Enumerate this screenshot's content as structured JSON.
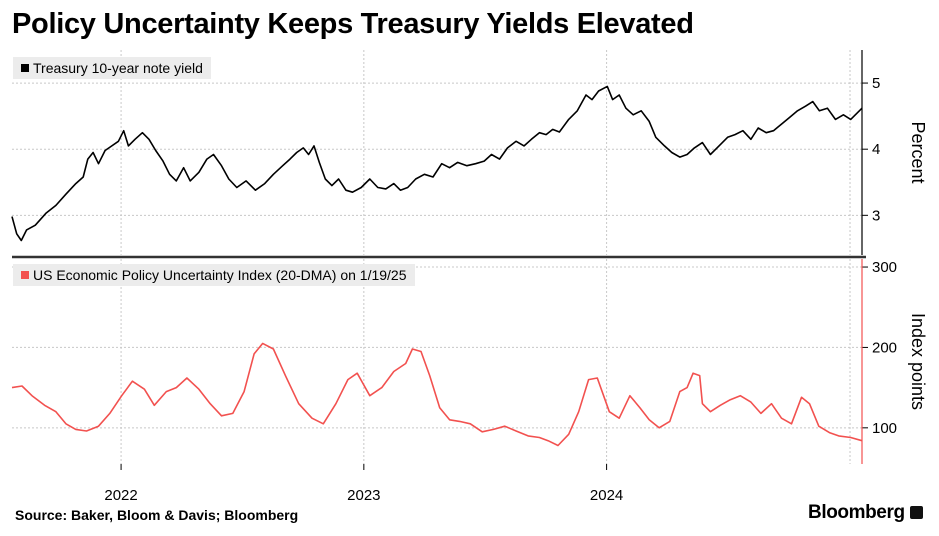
{
  "title": "Policy Uncertainty Keeps Treasury Yields Elevated",
  "source": "Source: Baker, Bloom & Davis; Bloomberg",
  "brand": "Bloomberg",
  "chart_data": [
    {
      "type": "line",
      "legend": "Treasury 10-year note yield",
      "ylabel": "Percent",
      "ylim": [
        2.4,
        5.5
      ],
      "yticks": [
        3,
        4,
        5
      ],
      "xlim": [
        "2021-07-21",
        "2025-01-19"
      ],
      "xticks": [
        {
          "label": "2022",
          "date": "2022-01-01"
        },
        {
          "label": "2023",
          "date": "2023-01-01"
        },
        {
          "label": "2024",
          "date": "2024-01-01"
        }
      ],
      "series": [
        {
          "color": "#000000",
          "points": [
            [
              "2021-07-21",
              2.98
            ],
            [
              "2021-07-28",
              2.72
            ],
            [
              "2021-08-04",
              2.62
            ],
            [
              "2021-08-12",
              2.78
            ],
            [
              "2021-08-25",
              2.85
            ],
            [
              "2021-09-10",
              3.03
            ],
            [
              "2021-09-25",
              3.15
            ],
            [
              "2021-10-10",
              3.32
            ],
            [
              "2021-10-25",
              3.48
            ],
            [
              "2021-11-05",
              3.58
            ],
            [
              "2021-11-12",
              3.85
            ],
            [
              "2021-11-20",
              3.95
            ],
            [
              "2021-11-28",
              3.78
            ],
            [
              "2021-12-08",
              3.98
            ],
            [
              "2021-12-18",
              4.05
            ],
            [
              "2021-12-28",
              4.12
            ],
            [
              "2022-01-05",
              4.28
            ],
            [
              "2022-01-12",
              4.05
            ],
            [
              "2022-01-22",
              4.15
            ],
            [
              "2022-02-02",
              4.25
            ],
            [
              "2022-02-12",
              4.15
            ],
            [
              "2022-02-22",
              3.98
            ],
            [
              "2022-03-05",
              3.82
            ],
            [
              "2022-03-15",
              3.62
            ],
            [
              "2022-03-25",
              3.52
            ],
            [
              "2022-04-05",
              3.72
            ],
            [
              "2022-04-15",
              3.52
            ],
            [
              "2022-04-28",
              3.65
            ],
            [
              "2022-05-10",
              3.85
            ],
            [
              "2022-05-20",
              3.92
            ],
            [
              "2022-06-01",
              3.75
            ],
            [
              "2022-06-12",
              3.55
            ],
            [
              "2022-06-24",
              3.42
            ],
            [
              "2022-07-08",
              3.52
            ],
            [
              "2022-07-22",
              3.38
            ],
            [
              "2022-08-05",
              3.48
            ],
            [
              "2022-08-18",
              3.62
            ],
            [
              "2022-09-01",
              3.75
            ],
            [
              "2022-09-12",
              3.85
            ],
            [
              "2022-09-22",
              3.95
            ],
            [
              "2022-10-02",
              4.02
            ],
            [
              "2022-10-10",
              3.92
            ],
            [
              "2022-10-18",
              4.05
            ],
            [
              "2022-10-26",
              3.8
            ],
            [
              "2022-11-04",
              3.55
            ],
            [
              "2022-11-14",
              3.45
            ],
            [
              "2022-11-24",
              3.55
            ],
            [
              "2022-12-05",
              3.38
            ],
            [
              "2022-12-15",
              3.35
            ],
            [
              "2022-12-28",
              3.42
            ],
            [
              "2023-01-10",
              3.55
            ],
            [
              "2023-01-22",
              3.42
            ],
            [
              "2023-02-03",
              3.4
            ],
            [
              "2023-02-15",
              3.48
            ],
            [
              "2023-02-25",
              3.38
            ],
            [
              "2023-03-08",
              3.42
            ],
            [
              "2023-03-20",
              3.55
            ],
            [
              "2023-04-02",
              3.62
            ],
            [
              "2023-04-15",
              3.58
            ],
            [
              "2023-04-28",
              3.78
            ],
            [
              "2023-05-10",
              3.72
            ],
            [
              "2023-05-22",
              3.8
            ],
            [
              "2023-06-05",
              3.75
            ],
            [
              "2023-06-18",
              3.78
            ],
            [
              "2023-07-01",
              3.82
            ],
            [
              "2023-07-12",
              3.92
            ],
            [
              "2023-07-24",
              3.85
            ],
            [
              "2023-08-05",
              4.02
            ],
            [
              "2023-08-18",
              4.12
            ],
            [
              "2023-08-30",
              4.05
            ],
            [
              "2023-09-10",
              4.15
            ],
            [
              "2023-09-22",
              4.25
            ],
            [
              "2023-10-02",
              4.22
            ],
            [
              "2023-10-12",
              4.3
            ],
            [
              "2023-10-22",
              4.26
            ],
            [
              "2023-11-05",
              4.45
            ],
            [
              "2023-11-18",
              4.58
            ],
            [
              "2023-12-01",
              4.82
            ],
            [
              "2023-12-10",
              4.75
            ],
            [
              "2023-12-20",
              4.88
            ],
            [
              "2024-01-02",
              4.95
            ],
            [
              "2024-01-10",
              4.75
            ],
            [
              "2024-01-20",
              4.82
            ],
            [
              "2024-01-30",
              4.62
            ],
            [
              "2024-02-10",
              4.52
            ],
            [
              "2024-02-22",
              4.58
            ],
            [
              "2024-03-05",
              4.42
            ],
            [
              "2024-03-15",
              4.18
            ],
            [
              "2024-03-28",
              4.05
            ],
            [
              "2024-04-08",
              3.95
            ],
            [
              "2024-04-20",
              3.88
            ],
            [
              "2024-05-01",
              3.92
            ],
            [
              "2024-05-12",
              4.02
            ],
            [
              "2024-05-24",
              4.1
            ],
            [
              "2024-06-05",
              3.92
            ],
            [
              "2024-06-18",
              4.05
            ],
            [
              "2024-07-01",
              4.18
            ],
            [
              "2024-07-12",
              4.22
            ],
            [
              "2024-07-24",
              4.28
            ],
            [
              "2024-08-05",
              4.15
            ],
            [
              "2024-08-16",
              4.32
            ],
            [
              "2024-08-28",
              4.25
            ],
            [
              "2024-09-08",
              4.28
            ],
            [
              "2024-09-20",
              4.38
            ],
            [
              "2024-10-02",
              4.48
            ],
            [
              "2024-10-14",
              4.58
            ],
            [
              "2024-10-26",
              4.65
            ],
            [
              "2024-11-06",
              4.72
            ],
            [
              "2024-11-16",
              4.58
            ],
            [
              "2024-11-28",
              4.62
            ],
            [
              "2024-12-10",
              4.45
            ],
            [
              "2024-12-22",
              4.52
            ],
            [
              "2025-01-02",
              4.45
            ],
            [
              "2025-01-19",
              4.62
            ]
          ]
        }
      ]
    },
    {
      "type": "line",
      "legend": "US Economic Policy Uncertainty Index (20-DMA) on 1/19/25",
      "ylabel": "Index points",
      "ylim": [
        55,
        310
      ],
      "yticks": [
        100,
        200,
        300
      ],
      "xlim": [
        "2021-07-21",
        "2025-01-19"
      ],
      "series": [
        {
          "color": "#f2514f",
          "points": [
            [
              "2021-07-21",
              150
            ],
            [
              "2021-08-05",
              152
            ],
            [
              "2021-08-20",
              140
            ],
            [
              "2021-09-08",
              128
            ],
            [
              "2021-09-25",
              120
            ],
            [
              "2021-10-10",
              105
            ],
            [
              "2021-10-25",
              98
            ],
            [
              "2021-11-10",
              96
            ],
            [
              "2021-11-28",
              102
            ],
            [
              "2021-12-15",
              118
            ],
            [
              "2022-01-02",
              140
            ],
            [
              "2022-01-18",
              158
            ],
            [
              "2022-02-05",
              148
            ],
            [
              "2022-02-20",
              128
            ],
            [
              "2022-03-10",
              145
            ],
            [
              "2022-03-25",
              150
            ],
            [
              "2022-04-10",
              162
            ],
            [
              "2022-04-28",
              148
            ],
            [
              "2022-05-15",
              130
            ],
            [
              "2022-06-01",
              115
            ],
            [
              "2022-06-18",
              118
            ],
            [
              "2022-07-05",
              145
            ],
            [
              "2022-07-20",
              192
            ],
            [
              "2022-08-02",
              205
            ],
            [
              "2022-08-18",
              198
            ],
            [
              "2022-09-05",
              165
            ],
            [
              "2022-09-25",
              130
            ],
            [
              "2022-10-15",
              112
            ],
            [
              "2022-11-01",
              105
            ],
            [
              "2022-11-20",
              130
            ],
            [
              "2022-12-08",
              160
            ],
            [
              "2022-12-22",
              168
            ],
            [
              "2023-01-10",
              140
            ],
            [
              "2023-01-28",
              150
            ],
            [
              "2023-02-15",
              170
            ],
            [
              "2023-03-05",
              180
            ],
            [
              "2023-03-15",
              198
            ],
            [
              "2023-03-28",
              195
            ],
            [
              "2023-04-10",
              165
            ],
            [
              "2023-04-25",
              125
            ],
            [
              "2023-05-10",
              110
            ],
            [
              "2023-05-25",
              108
            ],
            [
              "2023-06-10",
              105
            ],
            [
              "2023-06-28",
              95
            ],
            [
              "2023-07-15",
              98
            ],
            [
              "2023-08-01",
              102
            ],
            [
              "2023-08-18",
              96
            ],
            [
              "2023-09-05",
              90
            ],
            [
              "2023-09-22",
              88
            ],
            [
              "2023-10-05",
              84
            ],
            [
              "2023-10-20",
              78
            ],
            [
              "2023-11-05",
              92
            ],
            [
              "2023-11-20",
              120
            ],
            [
              "2023-12-05",
              160
            ],
            [
              "2023-12-18",
              162
            ],
            [
              "2024-01-05",
              120
            ],
            [
              "2024-01-20",
              112
            ],
            [
              "2024-02-05",
              140
            ],
            [
              "2024-02-20",
              125
            ],
            [
              "2024-03-05",
              110
            ],
            [
              "2024-03-20",
              100
            ],
            [
              "2024-04-05",
              108
            ],
            [
              "2024-04-20",
              145
            ],
            [
              "2024-05-01",
              150
            ],
            [
              "2024-05-10",
              168
            ],
            [
              "2024-05-20",
              165
            ],
            [
              "2024-05-24",
              130
            ],
            [
              "2024-06-05",
              120
            ],
            [
              "2024-06-20",
              128
            ],
            [
              "2024-07-05",
              135
            ],
            [
              "2024-07-20",
              140
            ],
            [
              "2024-08-05",
              132
            ],
            [
              "2024-08-20",
              118
            ],
            [
              "2024-09-05",
              130
            ],
            [
              "2024-09-20",
              112
            ],
            [
              "2024-10-05",
              105
            ],
            [
              "2024-10-20",
              138
            ],
            [
              "2024-11-01",
              130
            ],
            [
              "2024-11-15",
              102
            ],
            [
              "2024-12-01",
              94
            ],
            [
              "2024-12-15",
              90
            ],
            [
              "2025-01-02",
              88
            ],
            [
              "2025-01-19",
              84
            ]
          ]
        }
      ]
    }
  ]
}
